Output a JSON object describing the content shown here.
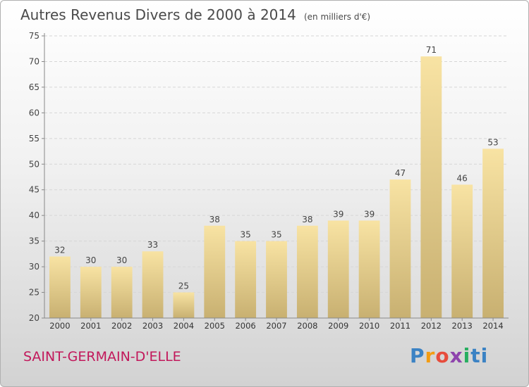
{
  "header": {
    "title": "Autres Revenus Divers de 2000 à 2014",
    "unit": "(en milliers d'€)"
  },
  "footer": {
    "town": "SAINT-GERMAIN-D'ELLE",
    "logo_text": "Proxiti",
    "logo_colors": [
      "#3b82c4",
      "#f39c12",
      "#e74c3c",
      "#8e44ad",
      "#27ae60",
      "#3b82c4"
    ]
  },
  "chart_data": {
    "type": "bar",
    "title": "Autres Revenus Divers de 2000 à 2014",
    "subtitle": "(en milliers d'€)",
    "categories": [
      "2000",
      "2001",
      "2002",
      "2003",
      "2004",
      "2005",
      "2006",
      "2007",
      "2008",
      "2009",
      "2010",
      "2011",
      "2012",
      "2013",
      "2014"
    ],
    "values": [
      32,
      30,
      30,
      33,
      25,
      38,
      35,
      35,
      38,
      39,
      39,
      47,
      71,
      46,
      53
    ],
    "ylim": [
      20,
      75
    ],
    "yticks": [
      20,
      25,
      30,
      35,
      40,
      45,
      50,
      55,
      60,
      65,
      70,
      75
    ],
    "grid": "horizontal",
    "bar_color_top": "#f8e3a3",
    "bar_color_bottom": "#c8b071"
  }
}
